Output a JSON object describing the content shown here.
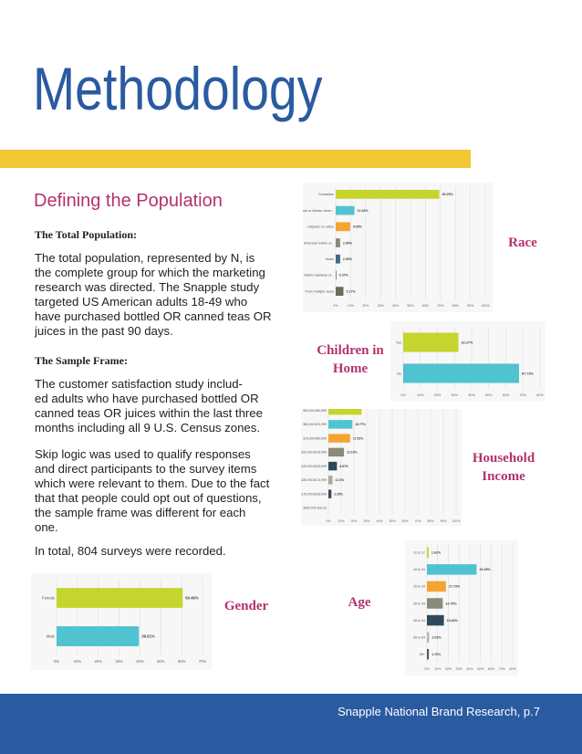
{
  "header": {
    "title": "Methodology"
  },
  "section": {
    "title": "Defining the Population",
    "total_population": {
      "heading": "The Total Population:",
      "lines": [
        "The total population, represented by N, is",
        "the complete group for which the marketing",
        "research was directed. The Snapple study",
        "targeted US American adults 18-49 who",
        "have purchased bottled OR canned teas OR",
        "juices in the past 90 days."
      ]
    },
    "sample_frame": {
      "heading": "The Sample Frame:",
      "para1_lines": [
        "The customer satisfaction study includ-",
        "ed adults who have purchased bottled OR",
        "canned teas OR juices within the last three",
        "months including all 9 U.S. Census zones."
      ],
      "para2_lines": [
        "Skip logic was used to qualify responses",
        "and direct participants to the survey items",
        "which were relevant to them. Due to the fact",
        "that that people could opt out of questions,",
        "the sample frame was different for each",
        "one."
      ],
      "para3": "In total, 804 surveys were recorded."
    }
  },
  "labels": {
    "race": "Race",
    "children_line1": "Children in",
    "children_line2": "Home",
    "income_line1": "Household",
    "income_line2": "Income",
    "gender": "Gender",
    "age": "Age"
  },
  "footer": {
    "text": "Snapple National Brand Research, p.7"
  },
  "colors": {
    "title_blue": "#2a5aa0",
    "accent_pink": "#b3336d",
    "yellow_bar": "#f2c731",
    "bar_lime": "#c5d52e",
    "bar_teal": "#4fc3cf",
    "bar_orange": "#f4a531",
    "bar_gray": "#8a8a7a",
    "bar_slate": "#3e6b87",
    "bar_darkslate": "#2d4a5c",
    "bar_red": "#d9472b"
  },
  "chart_data": [
    {
      "id": "race",
      "type": "bar",
      "orientation": "horizontal",
      "categories": [
        "Caucasian",
        "Black or African-Amer...",
        "Hispanic or Latino",
        "American Indian or...",
        "Asian",
        "Native Hawaiian or...",
        "From multiple races"
      ],
      "values": [
        69.25,
        12.52,
        9.65,
        2.99,
        2.99,
        0.37,
        5.17
      ],
      "labels": [
        "69.25%",
        "12.52%",
        "9.65%",
        "2.99%",
        "2.99%",
        "0.37%",
        "5.17%"
      ],
      "colors": [
        "#c5d52e",
        "#4fc3cf",
        "#f4a531",
        "#8a8a7a",
        "#3e6b87",
        "#2d4a5c",
        "#6b6b5a"
      ],
      "xticks": [
        "0%",
        "10%",
        "20%",
        "30%",
        "40%",
        "50%",
        "60%",
        "70%",
        "80%",
        "90%",
        "100%"
      ],
      "xlim": [
        0,
        100
      ]
    },
    {
      "id": "children",
      "type": "bar",
      "orientation": "horizontal",
      "categories": [
        "Yes",
        "No"
      ],
      "values": [
        32.27,
        67.73
      ],
      "labels": [
        "32.27%",
        "67.73%"
      ],
      "colors": [
        "#c5d52e",
        "#4fc3cf"
      ],
      "xticks": [
        "0%",
        "10%",
        "20%",
        "30%",
        "40%",
        "50%",
        "60%",
        "70%",
        "80%"
      ],
      "xlim": [
        0,
        80
      ]
    },
    {
      "id": "income",
      "type": "bar",
      "orientation": "horizontal",
      "categories": [
        "$25,000-$49,999",
        "$50,000-$74,999",
        "$75,000-$99,999",
        "$100,000-$124,999",
        "$125,000-$149,999",
        "$150,000-$174,999",
        "$175,000-$199,999",
        "$200,000 and up"
      ],
      "values": [
        26.0,
        18.77,
        17.02,
        12.19,
        6.67,
        3.21,
        2.35,
        0.0
      ],
      "labels": [
        "",
        "18.77%",
        "17.02%",
        "12.19%",
        "6.67%",
        "3.21%",
        "2.35%",
        ""
      ],
      "colors": [
        "#c5d52e",
        "#4fc3cf",
        "#f4a531",
        "#8a8a7a",
        "#2d4a5c",
        "#a9a99a",
        "#3e4a52",
        "#d9472b"
      ],
      "xticks": [
        "0%",
        "10%",
        "20%",
        "30%",
        "40%",
        "50%",
        "60%",
        "70%",
        "80%",
        "90%",
        "100%"
      ],
      "xlim": [
        0,
        100
      ]
    },
    {
      "id": "gender",
      "type": "bar",
      "orientation": "horizontal",
      "categories": [
        "Female",
        "Male"
      ],
      "values": [
        60.49,
        39.51
      ],
      "labels": [
        "60.49%",
        "39.51%"
      ],
      "colors": [
        "#c5d52e",
        "#4fc3cf"
      ],
      "xticks": [
        "0%",
        "10%",
        "20%",
        "30%",
        "40%",
        "50%",
        "60%",
        "70%"
      ],
      "xlim": [
        0,
        70
      ]
    },
    {
      "id": "age",
      "type": "bar",
      "orientation": "horizontal",
      "categories": [
        "12 to 17",
        "18 to 24",
        "25 to 34",
        "35 to 44",
        "45 to 54",
        "55 to 64",
        "65+"
      ],
      "values": [
        1.62,
        46.39,
        17.73,
        14.75,
        15.83,
        2.03,
        1.76
      ],
      "labels": [
        "1.62%",
        "46.39%",
        "17.73%",
        "14.75%",
        "15.83%",
        "2.03%",
        "1.76%"
      ],
      "colors": [
        "#c5d52e",
        "#4fc3cf",
        "#f4a531",
        "#8a8a7a",
        "#2d4a5c",
        "#b5b5b5",
        "#555555"
      ],
      "xticks": [
        "0%",
        "10%",
        "20%",
        "30%",
        "40%",
        "50%",
        "60%",
        "70%",
        "80%"
      ],
      "xlim": [
        0,
        80
      ]
    }
  ]
}
